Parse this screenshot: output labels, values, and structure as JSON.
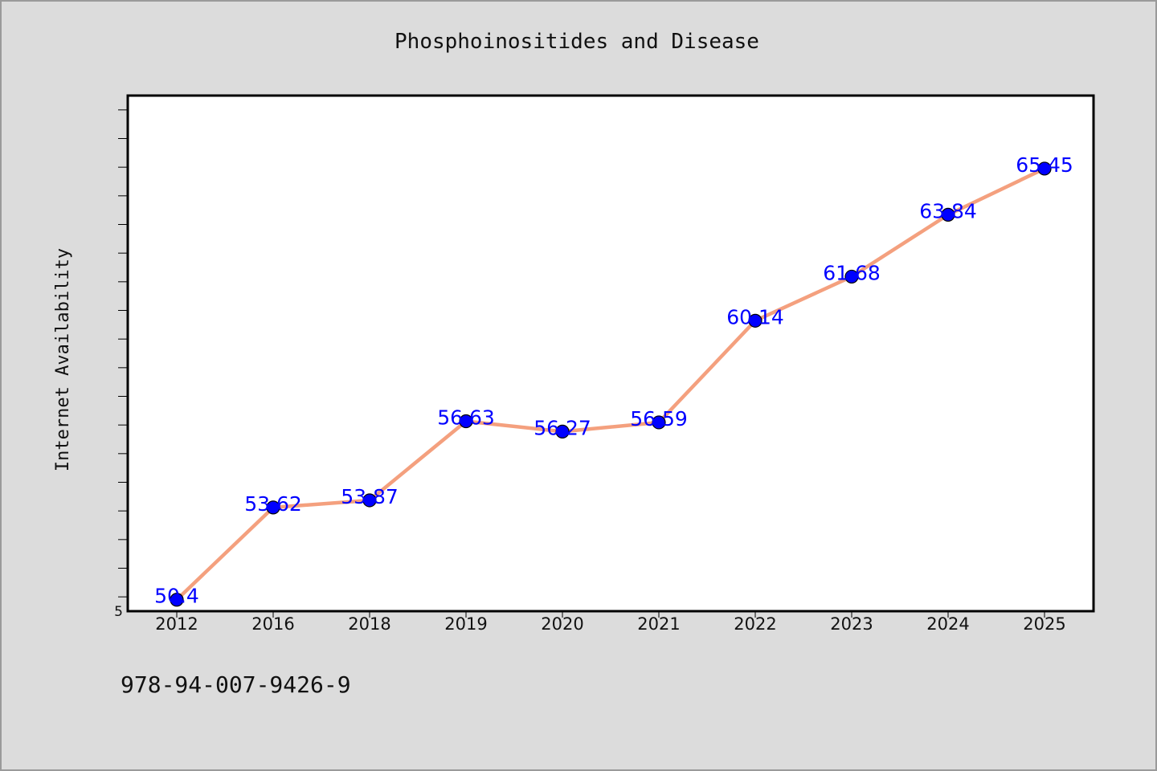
{
  "chart_data": {
    "type": "line",
    "title": "Phosphoinositides and Disease",
    "xlabel": "",
    "ylabel": "Internet Availability",
    "categories": [
      "2012",
      "2016",
      "2018",
      "2019",
      "2020",
      "2021",
      "2022",
      "2023",
      "2024",
      "2025"
    ],
    "series": [
      {
        "values": [
          50.4,
          53.62,
          53.87,
          56.63,
          56.27,
          56.59,
          60.14,
          61.68,
          63.84,
          65.45
        ],
        "labels": [
          "50.4",
          "53.62",
          "53.87",
          "56.63",
          "56.27",
          "56.59",
          "60.14",
          "61.68",
          "63.84",
          "65.45"
        ]
      }
    ],
    "y_tick_label": "5",
    "ylim": [
      50.0,
      68.0
    ],
    "grid": false,
    "footnote": "978-94-007-9426-9",
    "colors": {
      "line": "#f4a07e",
      "marker": "#0000ff",
      "data_label": "#0000ff",
      "background": "#dcdcdc",
      "plot_background": "#ffffff"
    }
  }
}
